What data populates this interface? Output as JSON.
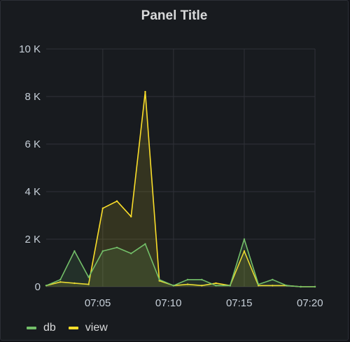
{
  "panel": {
    "title": "Panel Title"
  },
  "chart_data": {
    "type": "line",
    "title": "Panel Title",
    "xlabel": "",
    "ylabel": "",
    "x": [
      "07:01",
      "07:02",
      "07:03",
      "07:04",
      "07:05",
      "07:06",
      "07:07",
      "07:08",
      "07:09",
      "07:10",
      "07:11",
      "07:12",
      "07:13",
      "07:14",
      "07:15",
      "07:16",
      "07:17",
      "07:18",
      "07:19",
      "07:20"
    ],
    "x_ticks": [
      "07:05",
      "07:10",
      "07:15",
      "07:20"
    ],
    "y_ticks": [
      0,
      2000,
      4000,
      6000,
      8000,
      10000
    ],
    "y_tick_labels": [
      "0",
      "2 K",
      "4 K",
      "6 K",
      "8 K",
      "10 K"
    ],
    "ylim": [
      0,
      10000
    ],
    "grid": true,
    "legend_position": "bottom-left",
    "series": [
      {
        "name": "db",
        "color": "#73bf69",
        "values": [
          50,
          300,
          1500,
          400,
          1500,
          1650,
          1400,
          1800,
          300,
          50,
          300,
          300,
          50,
          50,
          2000,
          100,
          300,
          50,
          0,
          0
        ]
      },
      {
        "name": "view",
        "color": "#fade2a",
        "values": [
          50,
          200,
          150,
          100,
          3300,
          3600,
          2950,
          8200,
          250,
          50,
          100,
          50,
          150,
          50,
          1500,
          50,
          50,
          50,
          0,
          0
        ]
      }
    ]
  }
}
